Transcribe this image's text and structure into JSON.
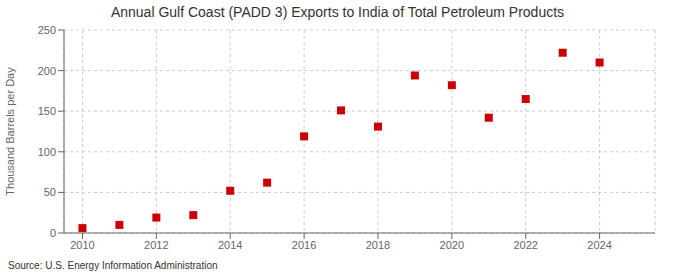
{
  "chart_data": {
    "type": "scatter",
    "title": "Annual Gulf Coast (PADD 3) Exports to India of Total Petroleum Products",
    "ylabel": "Thousand Barrels per Day",
    "annotation": "Source: U.S. Energy Information Administration",
    "x": [
      2010,
      2011,
      2012,
      2013,
      2014,
      2015,
      2016,
      2017,
      2018,
      2019,
      2020,
      2021,
      2022,
      2023,
      2024
    ],
    "values": [
      6,
      10,
      19,
      22,
      52,
      62,
      119,
      151,
      131,
      194,
      182,
      142,
      165,
      222,
      210
    ],
    "color": "#cc0000",
    "marker": "square",
    "xlim": [
      2009.5,
      2025.5
    ],
    "xticks": [
      2010,
      2012,
      2014,
      2016,
      2018,
      2020,
      2022,
      2024
    ],
    "ylim": [
      0,
      250
    ],
    "yticks": [
      0,
      50,
      100,
      150,
      200,
      250
    ],
    "grid": true
  }
}
